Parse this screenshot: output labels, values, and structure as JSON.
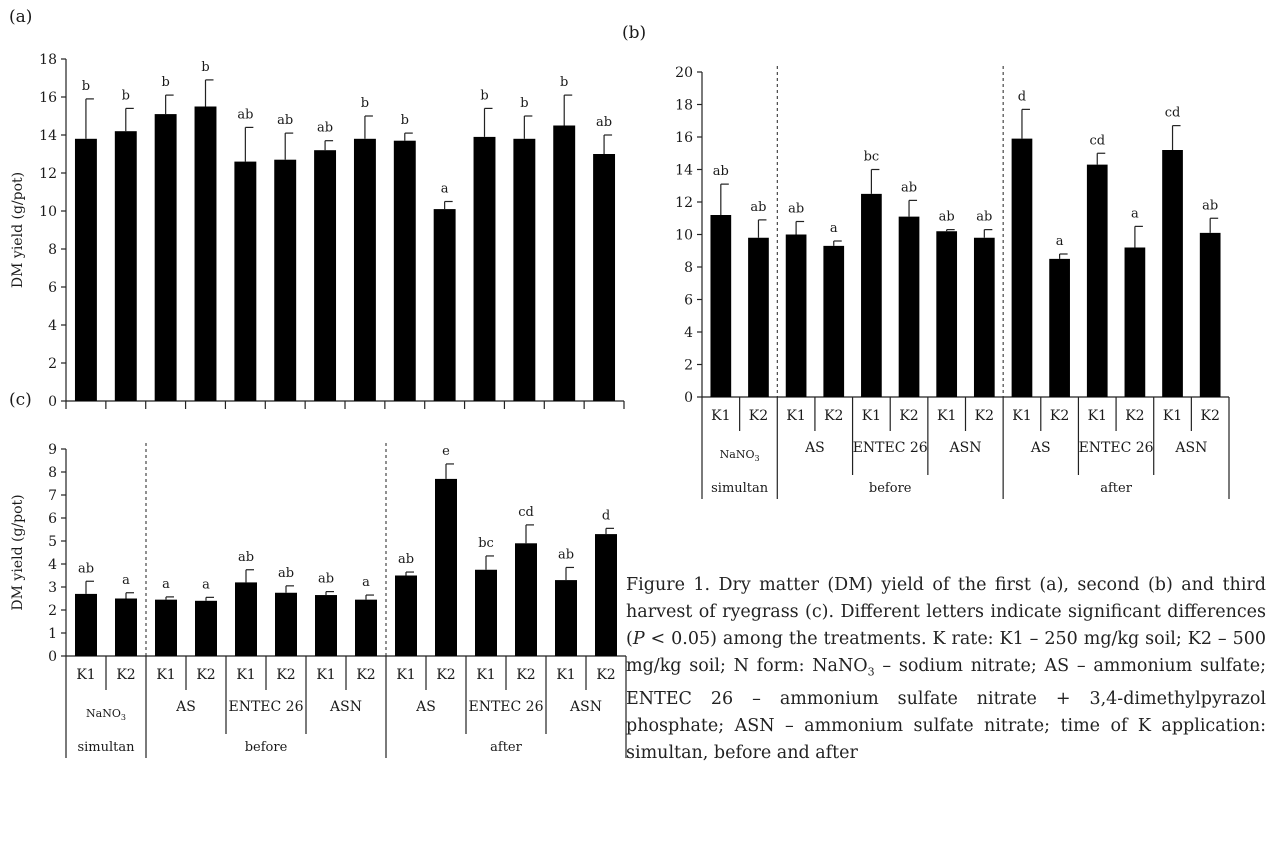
{
  "chart_data": [
    {
      "panel": "(a)",
      "type": "bar",
      "ylabel": "DM yield (g/pot)",
      "ylim": [
        0,
        18
      ],
      "yticks": [
        0,
        2,
        4,
        6,
        8,
        10,
        12,
        14,
        16,
        18
      ],
      "values": [
        13.8,
        14.2,
        15.1,
        15.5,
        12.6,
        12.7,
        13.2,
        13.8,
        13.7,
        10.1,
        13.9,
        13.8,
        14.5,
        13.0
      ],
      "errors": [
        2.1,
        1.2,
        1.0,
        1.4,
        1.8,
        1.4,
        0.5,
        1.2,
        0.4,
        0.4,
        1.5,
        1.2,
        1.6,
        1.0
      ],
      "letters": [
        "b",
        "b",
        "b",
        "b",
        "ab",
        "ab",
        "ab",
        "b",
        "b",
        "a",
        "b",
        "b",
        "b",
        "ab"
      ]
    },
    {
      "panel": "(b)",
      "type": "bar",
      "ylim": [
        0,
        20
      ],
      "yticks": [
        0,
        2,
        4,
        6,
        8,
        10,
        12,
        14,
        16,
        18,
        20
      ],
      "values": [
        11.2,
        9.8,
        10.0,
        9.3,
        12.5,
        11.1,
        10.2,
        9.8,
        15.9,
        8.5,
        14.3,
        9.2,
        15.2,
        10.1
      ],
      "errors": [
        1.9,
        1.1,
        0.8,
        0.3,
        1.5,
        1.0,
        0.1,
        0.5,
        1.8,
        0.3,
        0.7,
        1.3,
        1.5,
        0.9
      ],
      "letters": [
        "ab",
        "ab",
        "ab",
        "a",
        "bc",
        "ab",
        "ab",
        "ab",
        "d",
        "a",
        "cd",
        "a",
        "cd",
        "ab"
      ],
      "k_labels": [
        "K1",
        "K2",
        "K1",
        "K2",
        "K1",
        "K2",
        "K1",
        "K2",
        "K1",
        "K2",
        "K1",
        "K2",
        "K1",
        "K2"
      ]
    },
    {
      "panel": "(c)",
      "type": "bar",
      "ylabel": "DM yield (g/pot)",
      "ylim": [
        0,
        9
      ],
      "yticks": [
        0,
        1,
        2,
        3,
        4,
        5,
        6,
        7,
        8,
        9
      ],
      "values": [
        2.7,
        2.5,
        2.45,
        2.4,
        3.2,
        2.75,
        2.65,
        2.45,
        3.5,
        7.7,
        3.75,
        4.9,
        3.3,
        5.3
      ],
      "errors": [
        0.55,
        0.25,
        0.12,
        0.15,
        0.55,
        0.3,
        0.15,
        0.2,
        0.15,
        0.65,
        0.6,
        0.8,
        0.55,
        0.25
      ],
      "letters": [
        "ab",
        "a",
        "a",
        "a",
        "ab",
        "ab",
        "ab",
        "a",
        "ab",
        "e",
        "bc",
        "cd",
        "ab",
        "d"
      ],
      "k_labels": [
        "K1",
        "K2",
        "K1",
        "K2",
        "K1",
        "K2",
        "K1",
        "K2",
        "K1",
        "K2",
        "K1",
        "K2",
        "K1",
        "K2"
      ]
    }
  ],
  "panel_b_groups": {
    "n_forms": [
      "NaNO3",
      "AS",
      "ENTEC 26",
      "ASN",
      "AS",
      "ENTEC 26",
      "ASN"
    ],
    "times": [
      "simultan",
      "before",
      "after"
    ]
  },
  "panel_c_groups": {
    "n_forms": [
      "NaNO3",
      "AS",
      "ENTEC 26",
      "ASN",
      "AS",
      "ENTEC 26",
      "ASN"
    ],
    "times": [
      "simultan",
      "before",
      "after"
    ]
  },
  "caption": {
    "title": "Figure 1. Dry matter (DM) yield of the first (a), second (b) and third harvest of ryegrass (c). Different letters indicate significant differences (",
    "p": "P",
    "rest1": " < 0.05) among the treatments. K rate: K1 – 250 mg/kg soil; K2 – 500 mg/kg soil; N form: NaNO",
    "sub3": "3",
    "rest2": " – sodium nitrate; AS – ammonium sulfate; ENTEC 26 – ammonium sulfate nitrate + 3,4-dimethylpyrazol phosphate; ASN – ammonium sulfate nitrate; time of K application: simultan, before and after"
  }
}
